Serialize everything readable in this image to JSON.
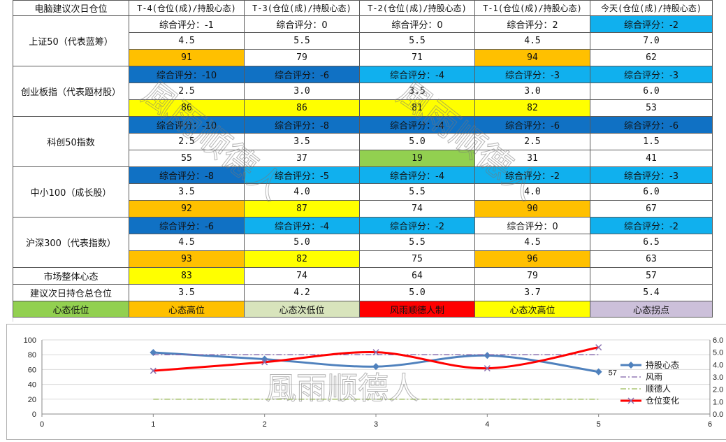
{
  "table": {
    "corner": "电脑建议次日仓位",
    "columns": [
      "T-4(仓位(成)/持股心态)",
      "T-3(仓位(成)/持股心态)",
      "T-2(仓位(成)/持股心态)",
      "T-1(仓位(成)/持股心态)",
      "今天(仓位(成)/持股心态)"
    ],
    "groups": [
      {
        "name": "上证50（代表蓝筹）",
        "scores": [
          "综合评分：-1",
          "综合评分：0",
          "综合评分：0",
          "综合评分：2",
          "综合评分：-2"
        ],
        "score_colors": [
          "#ffffff",
          "#ffffff",
          "#ffffff",
          "#ffffff",
          "#10b0ee"
        ],
        "positions": [
          "4.5",
          "5.5",
          "5.5",
          "4.5",
          "7.0"
        ],
        "moods": [
          "91",
          "79",
          "71",
          "94",
          "62"
        ],
        "mood_colors": [
          "#ffc000",
          "#ffffff",
          "#ffffff",
          "#ffc000",
          "#ffffff"
        ]
      },
      {
        "name": "创业板指（代表题材股）",
        "scores": [
          "综合评分：-10",
          "综合评分：-6",
          "综合评分：-4",
          "综合评分：-3",
          "综合评分：-3"
        ],
        "score_colors": [
          "#1071c4",
          "#1071c4",
          "#10b0ee",
          "#10b0ee",
          "#10b0ee"
        ],
        "positions": [
          "2.5",
          "3.0",
          "3.5",
          "3.0",
          "6.0"
        ],
        "moods": [
          "86",
          "86",
          "81",
          "82",
          "53"
        ],
        "mood_colors": [
          "#ffff00",
          "#ffff00",
          "#ffff00",
          "#ffff00",
          "#ffffff"
        ]
      },
      {
        "name": "科创50指数",
        "scores": [
          "综合评分：-10",
          "综合评分：-8",
          "综合评分：-4",
          "综合评分：-6",
          "综合评分：-6"
        ],
        "score_colors": [
          "#1071c4",
          "#1071c4",
          "#1071c4",
          "#1071c4",
          "#1071c4"
        ],
        "positions": [
          "2.5",
          "3.5",
          "5.0",
          "2.5",
          "1.5"
        ],
        "moods": [
          "55",
          "37",
          "19",
          "31",
          "41"
        ],
        "mood_colors": [
          "#ffffff",
          "#ffffff",
          "#92d050",
          "#ffffff",
          "#ffffff"
        ]
      },
      {
        "name": "中小100（成长股）",
        "scores": [
          "综合评分：-8",
          "综合评分：-5",
          "综合评分：-4",
          "综合评分：-2",
          "综合评分：-3"
        ],
        "score_colors": [
          "#1071c4",
          "#10b0ee",
          "#10b0ee",
          "#10b0ee",
          "#10b0ee"
        ],
        "positions": [
          "3.5",
          "4.0",
          "5.5",
          "4.0",
          "6.0"
        ],
        "moods": [
          "92",
          "87",
          "74",
          "90",
          "67"
        ],
        "mood_colors": [
          "#ffc000",
          "#ffff00",
          "#ffffff",
          "#ffc000",
          "#ffffff"
        ]
      },
      {
        "name": "沪深300（代表指数）",
        "scores": [
          "综合评分：-6",
          "综合评分：-4",
          "综合评分：-2",
          "综合评分：0",
          "综合评分：-2"
        ],
        "score_colors": [
          "#1071c4",
          "#10b0ee",
          "#10b0ee",
          "#ffffff",
          "#10b0ee"
        ],
        "positions": [
          "4.5",
          "5.0",
          "5.5",
          "4.5",
          "6.5"
        ],
        "moods": [
          "93",
          "82",
          "75",
          "96",
          "63"
        ],
        "mood_colors": [
          "#ffc000",
          "#ffff00",
          "#ffffff",
          "#ffc000",
          "#ffffff"
        ]
      }
    ],
    "market_label": "市场整体心态",
    "market_values": [
      "83",
      "74",
      "64",
      "79",
      "57"
    ],
    "market_colors": [
      "#ffff00",
      "#ffffff",
      "#ffffff",
      "#ffffff",
      "#ffffff"
    ],
    "total_label": "建议次日持仓总仓位",
    "total_values": [
      "3.5",
      "4.2",
      "5.0",
      "3.7",
      "5.4"
    ],
    "legend_cells": [
      {
        "label": "心态低位",
        "color": "#92d050"
      },
      {
        "label": "心态高位",
        "color": "#ffc000"
      },
      {
        "label": "心态次低位",
        "color": "#d8e4bc"
      },
      {
        "label": "风雨顺德人制",
        "color": "#ff0000"
      },
      {
        "label": "心态次高位",
        "color": "#ffff00"
      },
      {
        "label": "心态拐点",
        "color": "#ccc0da"
      }
    ]
  },
  "watermark": "風雨顺德人",
  "chart_data": {
    "type": "line",
    "x": [
      1,
      2,
      3,
      4,
      5
    ],
    "xlim": [
      0,
      6
    ],
    "xticks": [
      0,
      1,
      2,
      3,
      4,
      5,
      6
    ],
    "ylim": [
      0,
      100
    ],
    "yticks": [
      0,
      20,
      40,
      60,
      80,
      100
    ],
    "y2lim": [
      0,
      6
    ],
    "y2ticks": [
      "0.0",
      "1.0",
      "2.0",
      "3.0",
      "4.0",
      "5.0",
      "6.0"
    ],
    "grid": true,
    "legend_position": "right",
    "series": [
      {
        "name": "持股心态",
        "axis": "left",
        "values": [
          83,
          74,
          64,
          79,
          57
        ],
        "color": "#4f81bd",
        "style": "solid-diamond"
      },
      {
        "name": "风雨",
        "axis": "left",
        "values": [
          80,
          80,
          80,
          80,
          80
        ],
        "color": "#7f60a8",
        "style": "dashdot"
      },
      {
        "name": "顺德人",
        "axis": "left",
        "values": [
          20,
          20,
          20,
          20,
          20
        ],
        "color": "#9bbb59",
        "style": "dashdot"
      },
      {
        "name": "仓位变化",
        "axis": "right",
        "values": [
          3.5,
          4.2,
          5.0,
          3.7,
          5.4
        ],
        "color": "#ff0000",
        "style": "smooth-x"
      }
    ],
    "annotations": [
      {
        "text": "57",
        "series": "持股心态",
        "x": 5
      }
    ]
  }
}
